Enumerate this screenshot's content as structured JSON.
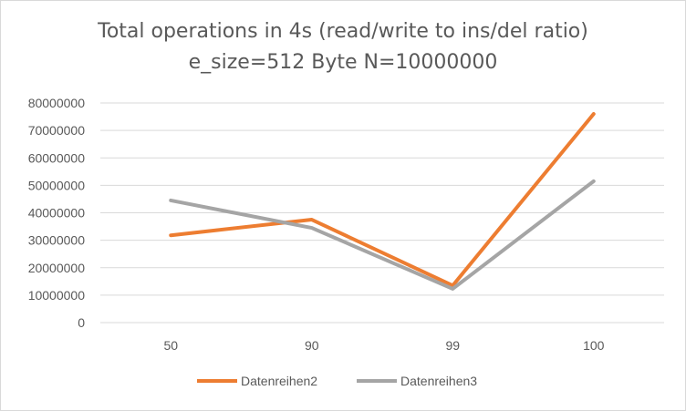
{
  "chart_data": {
    "type": "line",
    "title": "Total operations in 4s (read/write to ins/del ratio)",
    "subtitle": "e_size=512  Byte N=10000000",
    "categories": [
      "50",
      "90",
      "99",
      "100"
    ],
    "series": [
      {
        "name": "Datenreihen2",
        "color": "#ed7d31",
        "values": [
          31800000,
          37500000,
          13500000,
          76000000
        ]
      },
      {
        "name": "Datenreihen3",
        "color": "#a5a5a5",
        "values": [
          44500000,
          34500000,
          12300000,
          51500000
        ]
      }
    ],
    "ylim": [
      0,
      80000000
    ],
    "yticks": [
      "0",
      "10000000",
      "20000000",
      "30000000",
      "40000000",
      "50000000",
      "60000000",
      "70000000",
      "80000000"
    ],
    "grid": true,
    "legend": "bottom"
  }
}
